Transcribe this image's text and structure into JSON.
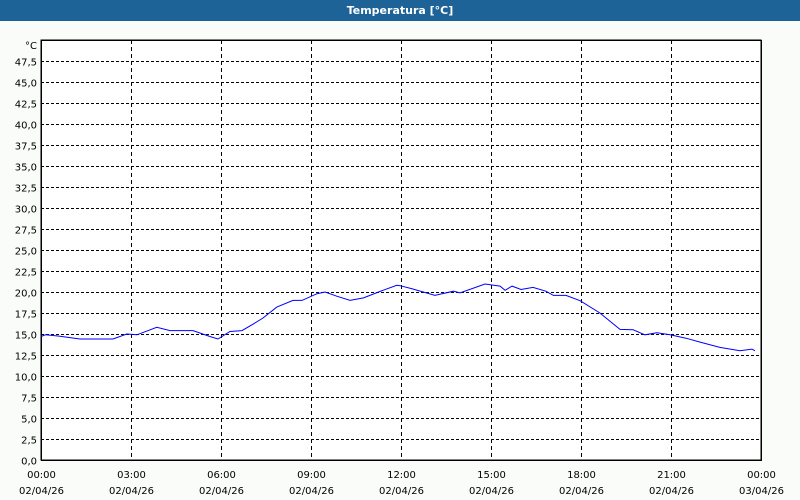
{
  "title": "Temperatura [°C]",
  "chart_data": {
    "type": "line",
    "title": "Temperatura [°C]",
    "ylabel": "°C",
    "ylim": [
      0,
      50
    ],
    "yticks": [
      "0,0",
      "2,5",
      "5,0",
      "7,5",
      "10,0",
      "12,5",
      "15,0",
      "17,5",
      "20,0",
      "22,5",
      "25,0",
      "27,5",
      "30,0",
      "32,5",
      "35,0",
      "37,5",
      "40,0",
      "42,5",
      "45,0",
      "47,5"
    ],
    "xlim_hours": [
      0,
      24
    ],
    "xticks": [
      {
        "time": "00:00",
        "date": "02/04/26"
      },
      {
        "time": "03:00",
        "date": "02/04/26"
      },
      {
        "time": "06:00",
        "date": "02/04/26"
      },
      {
        "time": "09:00",
        "date": "02/04/26"
      },
      {
        "time": "12:00",
        "date": "02/04/26"
      },
      {
        "time": "15:00",
        "date": "02/04/26"
      },
      {
        "time": "18:00",
        "date": "02/04/26"
      },
      {
        "time": "21:00",
        "date": "02/04/26"
      },
      {
        "time": "00:00",
        "date": "03/04/26"
      }
    ],
    "grid": true,
    "line_color": "#0000ff",
    "series": [
      {
        "hours": [
          0,
          0.15,
          0.6,
          1.3,
          2.4,
          2.86,
          3.2,
          3.86,
          4.3,
          5.07,
          5.63,
          5.9,
          6.3,
          6.7,
          7.08,
          7.4,
          7.86,
          8.4,
          8.7,
          9.2,
          9.47,
          9.86,
          10.3,
          10.75,
          11.4,
          11.86,
          11.97,
          12.35,
          13.13,
          13.75,
          13.97,
          14.8,
          15.3,
          15.47,
          15.7,
          16.0,
          16.4,
          16.83,
          17.08,
          17.5,
          17.97,
          18.63,
          19.3,
          19.74,
          20.13,
          20.53,
          20.97,
          21.5,
          22.0,
          22.63,
          23.3,
          23.7,
          23.8
        ],
        "values": [
          14.7,
          14.9,
          14.75,
          14.4,
          14.4,
          15.0,
          14.9,
          15.8,
          15.4,
          15.4,
          14.7,
          14.4,
          15.3,
          15.4,
          16.2,
          16.9,
          18.2,
          19.0,
          19.0,
          19.8,
          20.0,
          19.5,
          19.0,
          19.3,
          20.2,
          20.8,
          20.75,
          20.4,
          19.6,
          20.1,
          19.9,
          20.95,
          20.7,
          20.2,
          20.7,
          20.3,
          20.55,
          20.1,
          19.6,
          19.6,
          18.97,
          17.5,
          15.55,
          15.5,
          14.9,
          15.15,
          14.9,
          14.5,
          14.0,
          13.4,
          13.0,
          13.2,
          13.0
        ]
      }
    ]
  }
}
